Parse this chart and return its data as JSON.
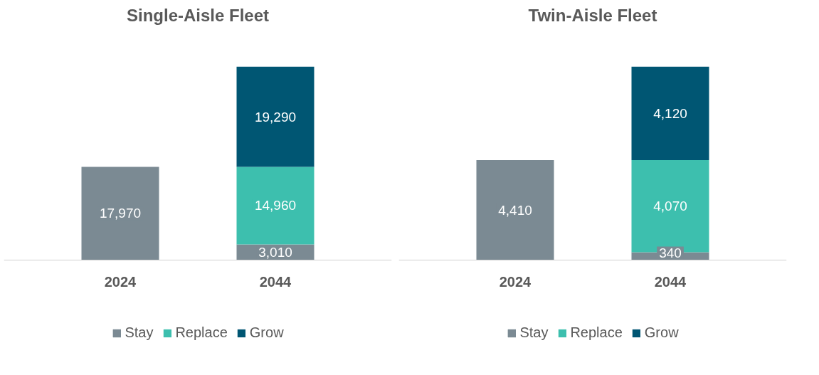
{
  "chart_data": [
    {
      "type": "bar",
      "title": "Single-Aisle Fleet",
      "categories": [
        "2024",
        "2044"
      ],
      "stacked": true,
      "legend": "bottom",
      "grid": false,
      "series": [
        {
          "name": "Stay",
          "color": "#7b8a93",
          "values": [
            17970,
            3010
          ],
          "value_labels": [
            "17,970",
            "3,010"
          ]
        },
        {
          "name": "Replace",
          "color": "#3dbfae",
          "values": [
            null,
            14960
          ],
          "value_labels": [
            null,
            "14,960"
          ]
        },
        {
          "name": "Grow",
          "color": "#005673",
          "values": [
            null,
            19290
          ],
          "value_labels": [
            null,
            "19,290"
          ]
        }
      ]
    },
    {
      "type": "bar",
      "title": "Twin-Aisle Fleet",
      "categories": [
        "2024",
        "2044"
      ],
      "stacked": true,
      "legend": "bottom",
      "grid": false,
      "series": [
        {
          "name": "Stay",
          "color": "#7b8a93",
          "values": [
            4410,
            340
          ],
          "value_labels": [
            "4,410",
            "340"
          ]
        },
        {
          "name": "Replace",
          "color": "#3dbfae",
          "values": [
            null,
            4070
          ],
          "value_labels": [
            null,
            "4,070"
          ]
        },
        {
          "name": "Grow",
          "color": "#005673",
          "values": [
            null,
            4120
          ],
          "value_labels": [
            null,
            "4,120"
          ]
        }
      ]
    }
  ]
}
